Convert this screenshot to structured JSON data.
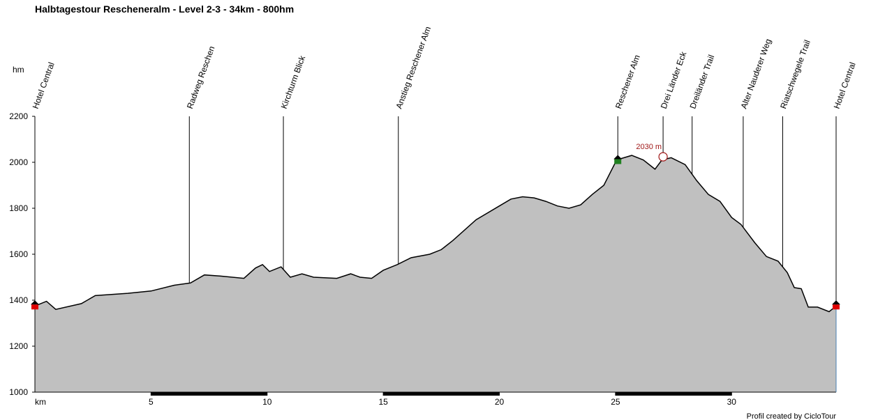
{
  "chart_data": {
    "type": "area",
    "title": "Halbtagestour Rescheneralm - Level 2-3 - 34km - 800hm",
    "y_label": "hm",
    "x_label": "km",
    "credit": "Profil created by CicloTour",
    "fill": "#c0c0c0",
    "line_color": "#000000",
    "xlim": [
      0,
      34.5
    ],
    "ylim": [
      1000,
      2200
    ],
    "xticks": [
      5,
      10,
      15,
      20,
      25,
      30
    ],
    "yticks": [
      1000,
      1200,
      1400,
      1600,
      1800,
      2000,
      2200
    ],
    "x": [
      0,
      0.5,
      0.9,
      2,
      2.6,
      4,
      5,
      6,
      6.7,
      7.3,
      8,
      9,
      9.5,
      9.8,
      10.1,
      10.6,
      11,
      11.5,
      12,
      13,
      13.6,
      14,
      14.5,
      15,
      15.6,
      16.2,
      17,
      17.5,
      18,
      19,
      20,
      20.5,
      21,
      21.5,
      22,
      22.5,
      23,
      23.5,
      24,
      24.5,
      25,
      25.2,
      25.7,
      26.2,
      26.7,
      27,
      27.4,
      28,
      28.5,
      29,
      29.5,
      30,
      30.4,
      31,
      31.5,
      32,
      32.4,
      32.7,
      33,
      33.3,
      33.7,
      34.2,
      34.5
    ],
    "values": [
      1375,
      1395,
      1360,
      1385,
      1420,
      1430,
      1440,
      1465,
      1475,
      1510,
      1505,
      1495,
      1540,
      1555,
      1525,
      1545,
      1500,
      1515,
      1500,
      1495,
      1515,
      1500,
      1495,
      1530,
      1555,
      1585,
      1600,
      1620,
      1660,
      1750,
      1810,
      1840,
      1850,
      1845,
      1830,
      1810,
      1800,
      1815,
      1860,
      1900,
      2000,
      2015,
      2030,
      2010,
      1970,
      2010,
      2020,
      1990,
      1920,
      1860,
      1830,
      1760,
      1730,
      1650,
      1590,
      1570,
      1520,
      1455,
      1450,
      1370,
      1370,
      1350,
      1375
    ],
    "annotation": {
      "label": "2030 m",
      "value": 2030,
      "km": 27.05
    },
    "waypoints": [
      {
        "name": "Hotel Central",
        "km": 0
      },
      {
        "name": "Radweg Reschen",
        "km": 6.65
      },
      {
        "name": "Kirchturm Blick",
        "km": 10.7
      },
      {
        "name": "Anstieg Reschener Alm",
        "km": 15.65
      },
      {
        "name": "Reschener Alm",
        "km": 25.1
      },
      {
        "name": "Drei Länder Eck",
        "km": 27.05
      },
      {
        "name": "Dreiländer Trail",
        "km": 28.3
      },
      {
        "name": "Alter Nauderer Weg",
        "km": 30.5
      },
      {
        "name": "Riatschwegele Trail",
        "km": 32.2
      },
      {
        "name": "Hotel Central",
        "km": 34.5
      }
    ]
  }
}
